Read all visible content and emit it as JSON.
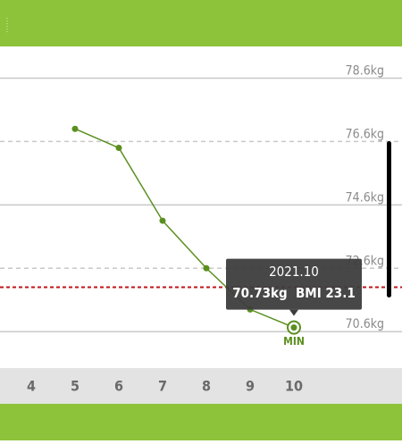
{
  "chart_data": {
    "type": "line",
    "categories": [
      "4",
      "5",
      "6",
      "7",
      "8",
      "9",
      "10"
    ],
    "series": [
      {
        "color": "#5a8f1f",
        "values": [
          null,
          77.0,
          76.4,
          74.1,
          72.6,
          71.3,
          70.73
        ]
      }
    ],
    "ylim": [
      69.45,
      79.6
    ],
    "yticks": [
      {
        "value": 70.6,
        "label": "70.6kg"
      },
      {
        "value": 72.6,
        "label": "72.6kg"
      },
      {
        "value": 74.6,
        "label": "74.6kg"
      },
      {
        "value": 76.6,
        "label": "76.6kg"
      },
      {
        "value": 78.6,
        "label": "78.6kg"
      }
    ],
    "grid": true,
    "target": 72.0,
    "target_color": "#c0161b",
    "tooltip": {
      "date": "2021.10",
      "text": "70.73kg  BMI 23.1"
    },
    "min_label": "MIN"
  }
}
